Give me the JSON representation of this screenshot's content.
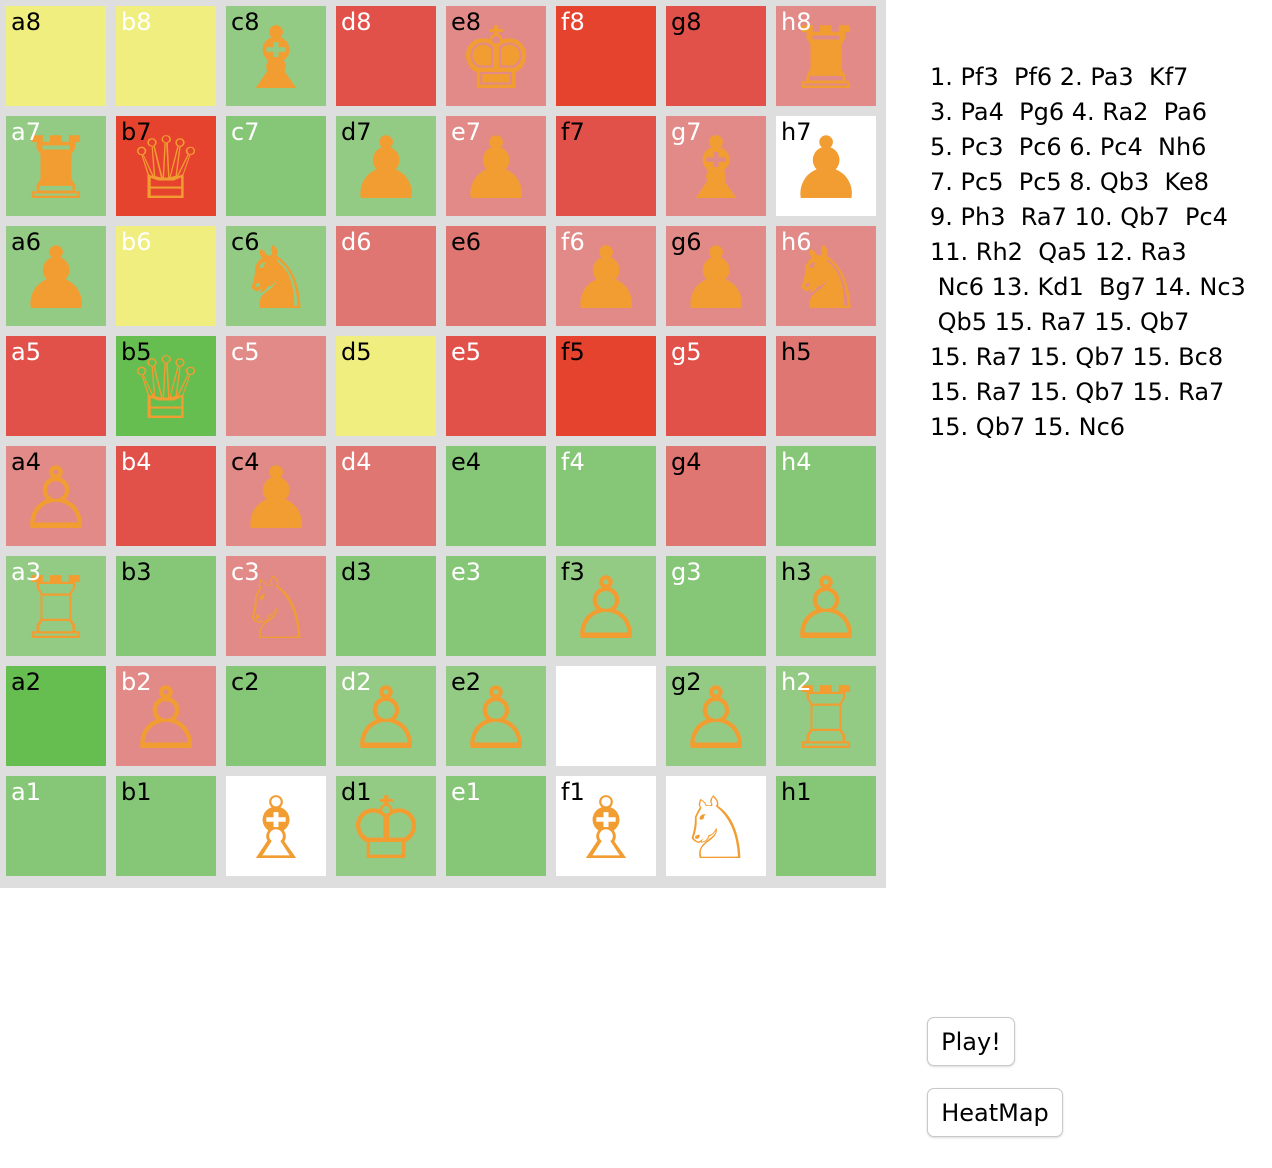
{
  "board": {
    "ranks": [
      [
        {
          "label": "a8",
          "color": "#f0ee7e",
          "label_color": "#000000",
          "piece": null
        },
        {
          "label": "b8",
          "color": "#f0ee7e",
          "label_color": "#ffffff",
          "piece": null
        },
        {
          "label": "c8",
          "color": "#94cb84",
          "label_color": "#000000",
          "piece": {
            "symbol": "♝",
            "icon": "black-bishop-icon"
          }
        },
        {
          "label": "d8",
          "color": "#e2504a",
          "label_color": "#ffffff",
          "piece": null
        },
        {
          "label": "e8",
          "color": "#e28a88",
          "label_color": "#000000",
          "piece": {
            "symbol": "♚",
            "icon": "black-king-icon"
          }
        },
        {
          "label": "f8",
          "color": "#e6432e",
          "label_color": "#ffffff",
          "piece": null
        },
        {
          "label": "g8",
          "color": "#e2504a",
          "label_color": "#000000",
          "piece": null
        },
        {
          "label": "h8",
          "color": "#e28a88",
          "label_color": "#ffffff",
          "piece": {
            "symbol": "♜",
            "icon": "black-rook-icon"
          }
        }
      ],
      [
        {
          "label": "a7",
          "color": "#94cb84",
          "label_color": "#ffffff",
          "piece": {
            "symbol": "♜",
            "icon": "black-rook-icon"
          }
        },
        {
          "label": "b7",
          "color": "#e6432e",
          "label_color": "#000000",
          "piece": {
            "symbol": "♕",
            "icon": "white-queen-icon"
          }
        },
        {
          "label": "c7",
          "color": "#86c677",
          "label_color": "#ffffff",
          "piece": null
        },
        {
          "label": "d7",
          "color": "#94cb84",
          "label_color": "#000000",
          "piece": {
            "symbol": "♟",
            "icon": "black-pawn-icon"
          }
        },
        {
          "label": "e7",
          "color": "#e28a88",
          "label_color": "#ffffff",
          "piece": {
            "symbol": "♟",
            "icon": "black-pawn-icon"
          }
        },
        {
          "label": "f7",
          "color": "#e2504a",
          "label_color": "#000000",
          "piece": null
        },
        {
          "label": "g7",
          "color": "#e28a88",
          "label_color": "#ffffff",
          "piece": {
            "symbol": "♝",
            "icon": "black-bishop-icon"
          }
        },
        {
          "label": "h7",
          "color": "#ffffff",
          "label_color": "#000000",
          "piece": {
            "symbol": "♟",
            "icon": "black-pawn-icon"
          }
        }
      ],
      [
        {
          "label": "a6",
          "color": "#94cb84",
          "label_color": "#000000",
          "piece": {
            "symbol": "♟",
            "icon": "black-pawn-icon"
          }
        },
        {
          "label": "b6",
          "color": "#f0ee7e",
          "label_color": "#ffffff",
          "piece": null
        },
        {
          "label": "c6",
          "color": "#94cb84",
          "label_color": "#000000",
          "piece": {
            "symbol": "♞",
            "icon": "black-knight-icon"
          }
        },
        {
          "label": "d6",
          "color": "#e07671",
          "label_color": "#ffffff",
          "piece": null
        },
        {
          "label": "e6",
          "color": "#e07671",
          "label_color": "#000000",
          "piece": null
        },
        {
          "label": "f6",
          "color": "#e28a88",
          "label_color": "#ffffff",
          "piece": {
            "symbol": "♟",
            "icon": "black-pawn-icon"
          }
        },
        {
          "label": "g6",
          "color": "#e28a88",
          "label_color": "#000000",
          "piece": {
            "symbol": "♟",
            "icon": "black-pawn-icon"
          }
        },
        {
          "label": "h6",
          "color": "#e28a88",
          "label_color": "#ffffff",
          "piece": {
            "symbol": "♞",
            "icon": "black-knight-icon"
          }
        }
      ],
      [
        {
          "label": "a5",
          "color": "#e2504a",
          "label_color": "#ffffff",
          "piece": null
        },
        {
          "label": "b5",
          "color": "#66bd50",
          "label_color": "#000000",
          "piece": {
            "symbol": "♕",
            "icon": "white-queen-icon"
          }
        },
        {
          "label": "c5",
          "color": "#e28a88",
          "label_color": "#ffffff",
          "piece": null
        },
        {
          "label": "d5",
          "color": "#f0ee7e",
          "label_color": "#000000",
          "piece": null
        },
        {
          "label": "e5",
          "color": "#e2504a",
          "label_color": "#ffffff",
          "piece": null
        },
        {
          "label": "f5",
          "color": "#e6432e",
          "label_color": "#000000",
          "piece": null
        },
        {
          "label": "g5",
          "color": "#e2504a",
          "label_color": "#ffffff",
          "piece": null
        },
        {
          "label": "h5",
          "color": "#e07671",
          "label_color": "#000000",
          "piece": null
        }
      ],
      [
        {
          "label": "a4",
          "color": "#e28a88",
          "label_color": "#000000",
          "piece": {
            "symbol": "♙",
            "icon": "white-pawn-icon"
          }
        },
        {
          "label": "b4",
          "color": "#e2504a",
          "label_color": "#ffffff",
          "piece": null
        },
        {
          "label": "c4",
          "color": "#e28a88",
          "label_color": "#000000",
          "piece": {
            "symbol": "♟",
            "icon": "black-pawn-icon"
          }
        },
        {
          "label": "d4",
          "color": "#e07671",
          "label_color": "#ffffff",
          "piece": null
        },
        {
          "label": "e4",
          "color": "#86c677",
          "label_color": "#000000",
          "piece": null
        },
        {
          "label": "f4",
          "color": "#86c677",
          "label_color": "#ffffff",
          "piece": null
        },
        {
          "label": "g4",
          "color": "#e07671",
          "label_color": "#000000",
          "piece": null
        },
        {
          "label": "h4",
          "color": "#86c677",
          "label_color": "#ffffff",
          "piece": null
        }
      ],
      [
        {
          "label": "a3",
          "color": "#94cb84",
          "label_color": "#ffffff",
          "piece": {
            "symbol": "♖",
            "icon": "white-rook-icon"
          }
        },
        {
          "label": "b3",
          "color": "#86c677",
          "label_color": "#000000",
          "piece": null
        },
        {
          "label": "c3",
          "color": "#e28a88",
          "label_color": "#ffffff",
          "piece": {
            "symbol": "♘",
            "icon": "white-knight-icon"
          }
        },
        {
          "label": "d3",
          "color": "#86c677",
          "label_color": "#000000",
          "piece": null
        },
        {
          "label": "e3",
          "color": "#86c677",
          "label_color": "#ffffff",
          "piece": null
        },
        {
          "label": "f3",
          "color": "#94cb84",
          "label_color": "#000000",
          "piece": {
            "symbol": "♙",
            "icon": "white-pawn-icon"
          }
        },
        {
          "label": "g3",
          "color": "#86c677",
          "label_color": "#ffffff",
          "piece": null
        },
        {
          "label": "h3",
          "color": "#94cb84",
          "label_color": "#000000",
          "piece": {
            "symbol": "♙",
            "icon": "white-pawn-icon"
          }
        }
      ],
      [
        {
          "label": "a2",
          "color": "#66bd50",
          "label_color": "#000000",
          "piece": null
        },
        {
          "label": "b2",
          "color": "#e28a88",
          "label_color": "#ffffff",
          "piece": {
            "symbol": "♙",
            "icon": "white-pawn-icon"
          }
        },
        {
          "label": "c2",
          "color": "#86c677",
          "label_color": "#000000",
          "piece": null
        },
        {
          "label": "d2",
          "color": "#94cb84",
          "label_color": "#ffffff",
          "piece": {
            "symbol": "♙",
            "icon": "white-pawn-icon"
          }
        },
        {
          "label": "e2",
          "color": "#94cb84",
          "label_color": "#000000",
          "piece": {
            "symbol": "♙",
            "icon": "white-pawn-icon"
          }
        },
        {
          "label": "",
          "color": "#ffffff",
          "label_color": "#ffffff",
          "piece": null
        },
        {
          "label": "g2",
          "color": "#94cb84",
          "label_color": "#000000",
          "piece": {
            "symbol": "♙",
            "icon": "white-pawn-icon"
          }
        },
        {
          "label": "h2",
          "color": "#94cb84",
          "label_color": "#ffffff",
          "piece": {
            "symbol": "♖",
            "icon": "white-rook-icon"
          }
        }
      ],
      [
        {
          "label": "a1",
          "color": "#86c677",
          "label_color": "#ffffff",
          "piece": null
        },
        {
          "label": "b1",
          "color": "#86c677",
          "label_color": "#000000",
          "piece": null
        },
        {
          "label": "",
          "color": "#ffffff",
          "label_color": "#ffffff",
          "piece": {
            "symbol": "♗",
            "icon": "white-bishop-icon"
          }
        },
        {
          "label": "d1",
          "color": "#94cb84",
          "label_color": "#000000",
          "piece": {
            "symbol": "♔",
            "icon": "white-king-icon"
          }
        },
        {
          "label": "e1",
          "color": "#86c677",
          "label_color": "#ffffff",
          "piece": null
        },
        {
          "label": "f1",
          "color": "#ffffff",
          "label_color": "#000000",
          "piece": {
            "symbol": "♗",
            "icon": "white-bishop-icon"
          }
        },
        {
          "label": "",
          "color": "#ffffff",
          "label_color": "#ffffff",
          "piece": {
            "symbol": "♘",
            "icon": "white-knight-icon"
          }
        },
        {
          "label": "h1",
          "color": "#86c677",
          "label_color": "#000000",
          "piece": null
        }
      ]
    ]
  },
  "moves": [
    "1. Pf3  Pf6 2. Pa3  Kf7",
    "3. Pa4  Pg6 4. Ra2  Pa6",
    "5. Pc3  Pc6 6. Pc4  Nh6",
    "7. Pc5  Pc5 8. Qb3  Ke8",
    "9. Ph3  Ra7 10. Qb7  Pc4",
    "11. Rh2  Qa5 12. Ra3",
    " Nc6 13. Kd1  Bg7 14. Nc3",
    " Qb5 15. Ra7 15. Qb7",
    "15. Ra7 15. Qb7 15. Bc8",
    "15. Ra7 15. Qb7 15. Ra7",
    "15. Qb7 15. Nc6"
  ],
  "buttons": {
    "play_label": "Play!",
    "heatmap_label": "HeatMap"
  }
}
